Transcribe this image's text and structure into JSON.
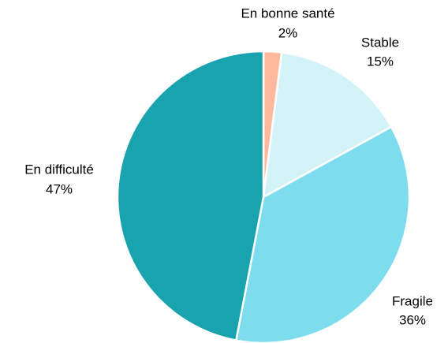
{
  "chart_data": {
    "type": "pie",
    "categories": [
      "En bonne santé",
      "Stable",
      "Fragile",
      "En difficulté"
    ],
    "values": [
      2,
      15,
      36,
      47
    ],
    "value_labels": [
      "2%",
      "15%",
      "36%",
      "47%"
    ],
    "colors": [
      "#ffb89c",
      "#d4f3f8",
      "#7ddcee",
      "#19a3ae"
    ]
  }
}
